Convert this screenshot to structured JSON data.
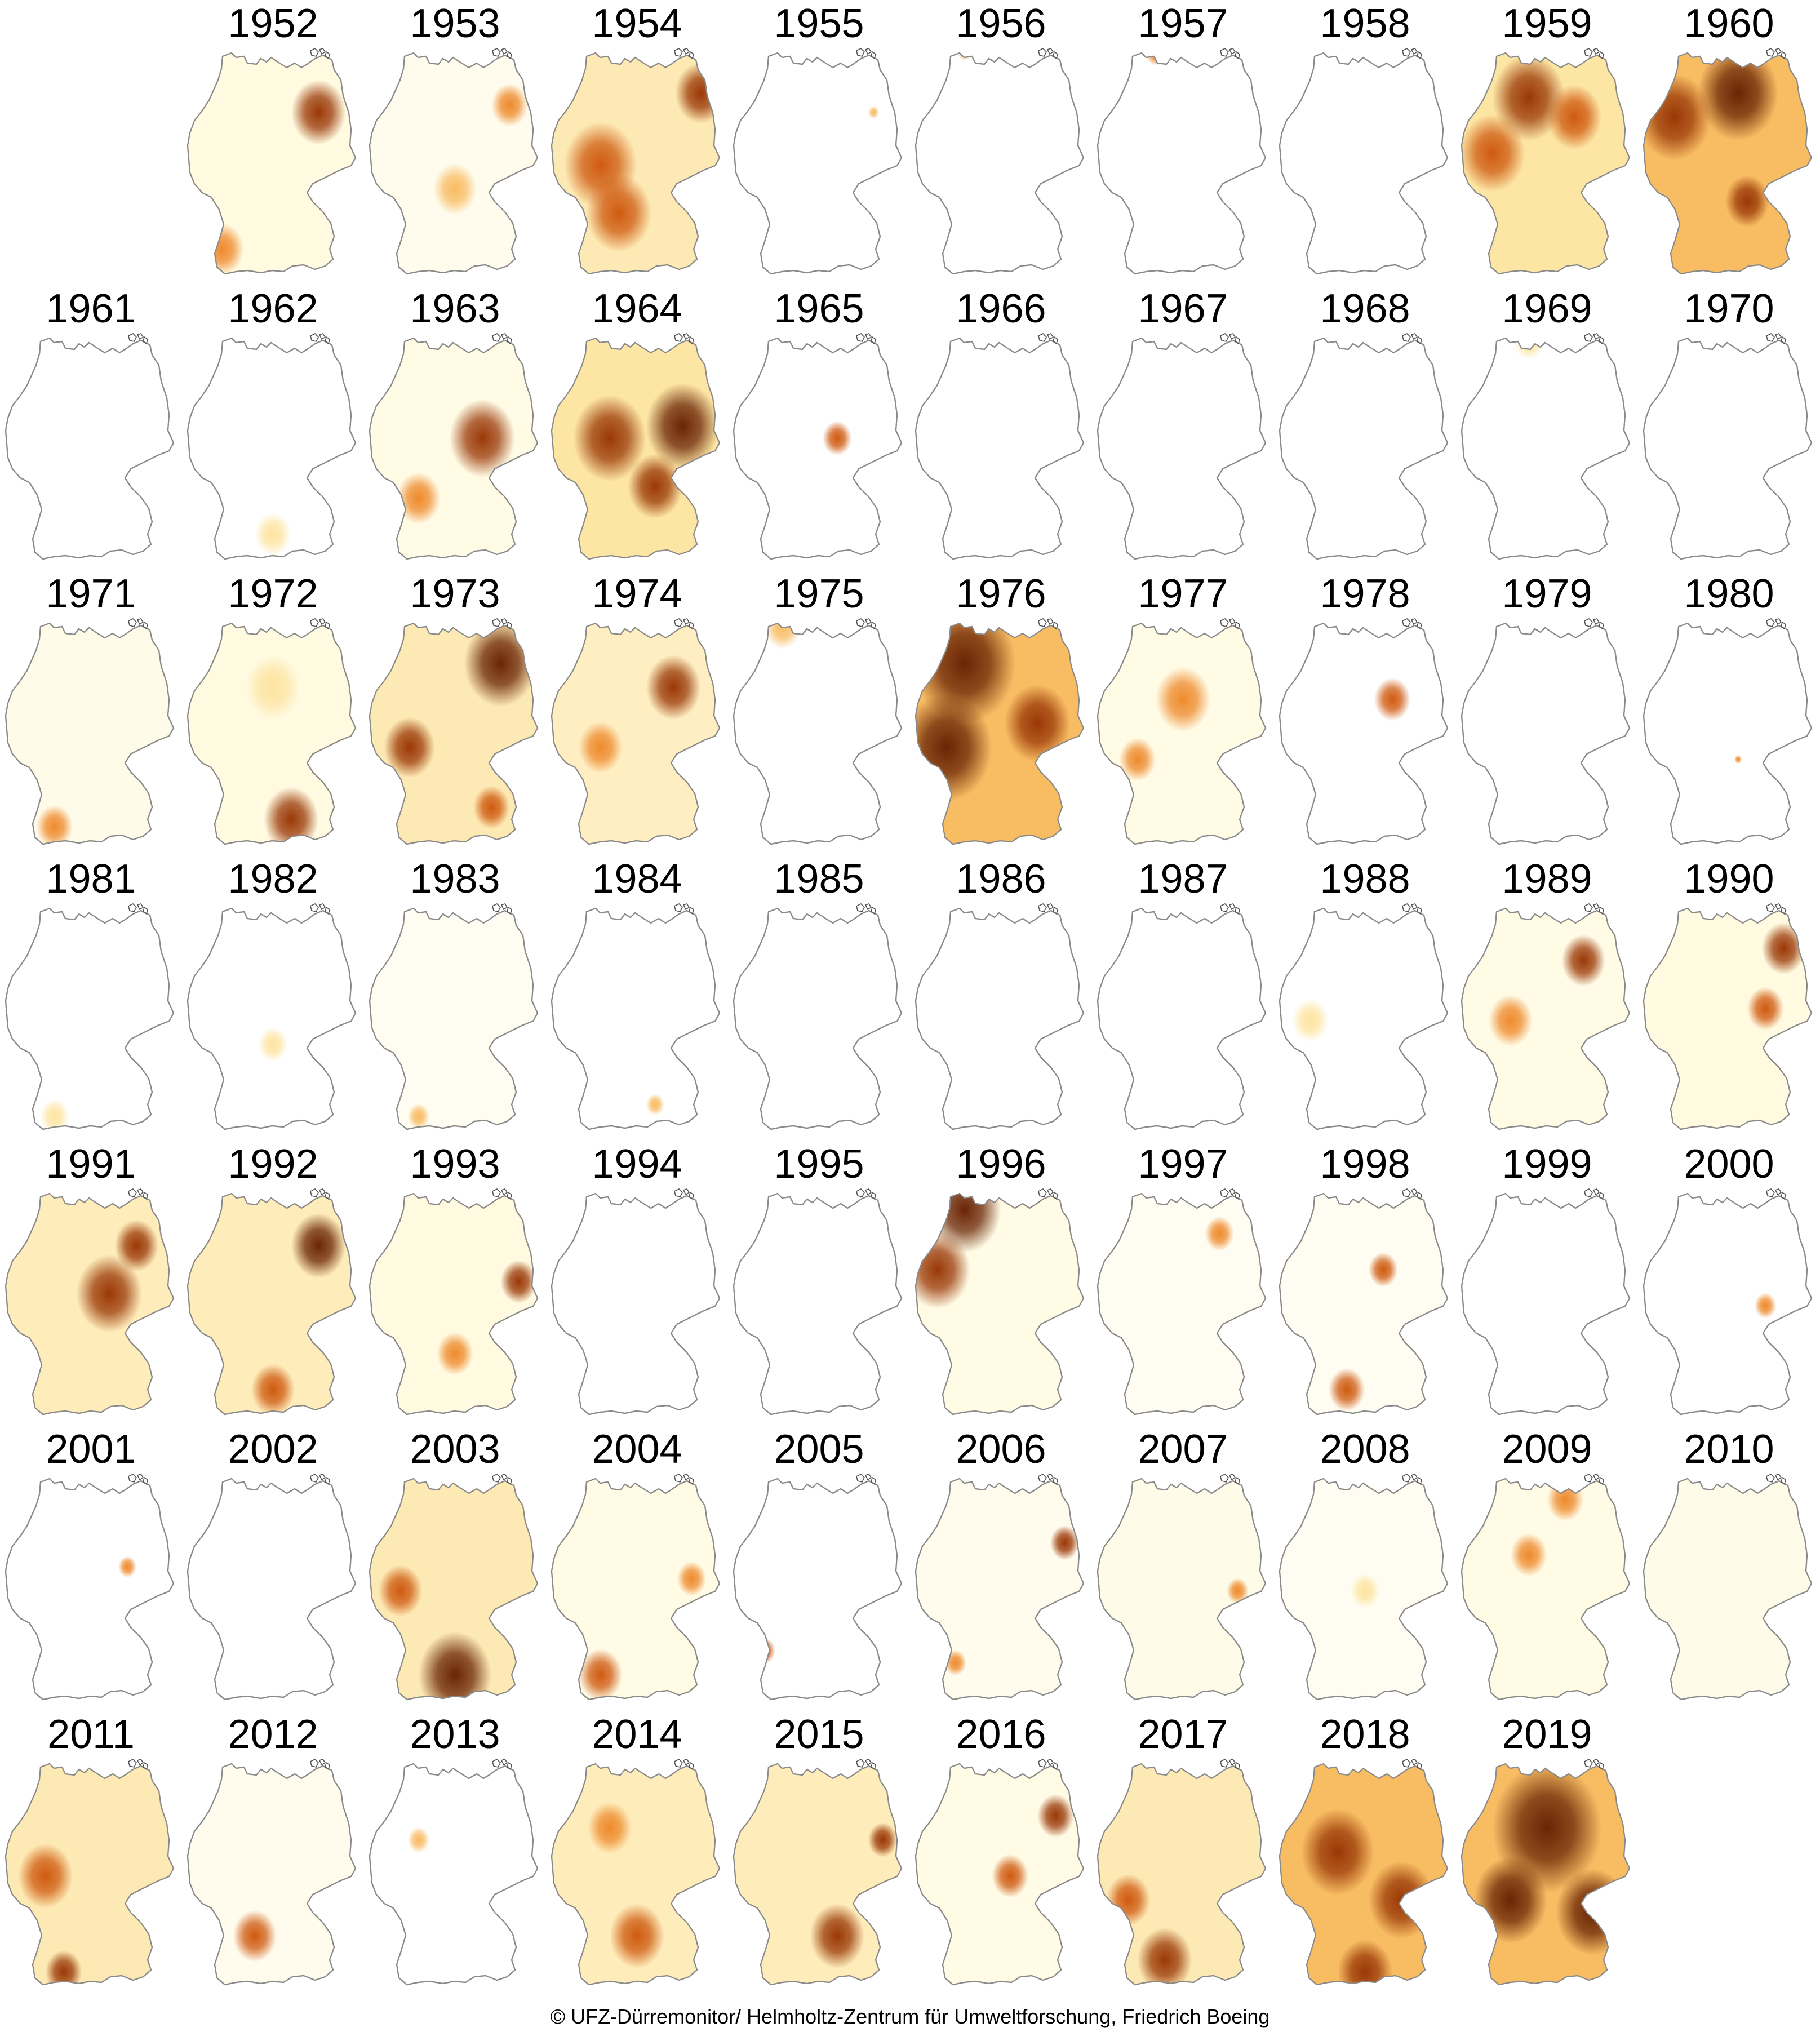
{
  "map": {
    "subject": "Germany",
    "colors": {
      "palette": [
        "#ffffff",
        "#fff6c8",
        "#fde4a0",
        "#f8bc63",
        "#ee8a2c",
        "#cf5a10",
        "#9a3806",
        "#6a2404"
      ],
      "outline": "#8a8a8a",
      "background": "#ffffff"
    },
    "years": [
      {
        "year": "1952",
        "level": 0.35,
        "hotspots": [
          [
            0.75,
            0.28,
            0.15,
            0.9
          ],
          [
            0.22,
            0.85,
            0.12,
            0.6
          ]
        ]
      },
      {
        "year": "1953",
        "level": 0.2,
        "hotspots": [
          [
            0.8,
            0.25,
            0.1,
            0.6
          ],
          [
            0.5,
            0.6,
            0.12,
            0.4
          ]
        ]
      },
      {
        "year": "1954",
        "level": 0.5,
        "hotspots": [
          [
            0.85,
            0.2,
            0.14,
            0.9
          ],
          [
            0.3,
            0.5,
            0.2,
            0.7
          ],
          [
            0.4,
            0.7,
            0.18,
            0.7
          ]
        ]
      },
      {
        "year": "1955",
        "level": 0.01,
        "hotspots": [
          [
            0.8,
            0.28,
            0.03,
            0.4
          ]
        ]
      },
      {
        "year": "1956",
        "level": 0.02,
        "hotspots": [
          [
            0.3,
            0.03,
            0.04,
            0.4
          ]
        ]
      },
      {
        "year": "1957",
        "level": 0.02,
        "hotspots": [
          [
            0.35,
            0.04,
            0.05,
            0.5
          ]
        ]
      },
      {
        "year": "1958",
        "level": 0.01,
        "hotspots": []
      },
      {
        "year": "1959",
        "level": 0.6,
        "hotspots": [
          [
            0.4,
            0.22,
            0.2,
            0.85
          ],
          [
            0.2,
            0.45,
            0.18,
            0.7
          ],
          [
            0.65,
            0.3,
            0.15,
            0.7
          ]
        ]
      },
      {
        "year": "1960",
        "level": 0.7,
        "hotspots": [
          [
            0.55,
            0.2,
            0.22,
            0.95
          ],
          [
            0.2,
            0.3,
            0.2,
            0.9
          ],
          [
            0.6,
            0.65,
            0.12,
            0.8
          ]
        ]
      },
      {
        "year": "1961",
        "level": 0.02,
        "hotspots": []
      },
      {
        "year": "1962",
        "level": 0.04,
        "hotspots": [
          [
            0.5,
            0.85,
            0.1,
            0.25
          ]
        ]
      },
      {
        "year": "1963",
        "level": 0.3,
        "hotspots": [
          [
            0.65,
            0.45,
            0.18,
            0.85
          ],
          [
            0.3,
            0.7,
            0.12,
            0.6
          ]
        ]
      },
      {
        "year": "1964",
        "level": 0.6,
        "hotspots": [
          [
            0.75,
            0.4,
            0.2,
            1.0
          ],
          [
            0.35,
            0.45,
            0.2,
            0.8
          ],
          [
            0.6,
            0.65,
            0.15,
            0.8
          ]
        ]
      },
      {
        "year": "1965",
        "level": 0.08,
        "hotspots": [
          [
            0.6,
            0.45,
            0.08,
            0.7
          ]
        ]
      },
      {
        "year": "1966",
        "level": 0.01,
        "hotspots": []
      },
      {
        "year": "1967",
        "level": 0.01,
        "hotspots": []
      },
      {
        "year": "1968",
        "level": 0.01,
        "hotspots": []
      },
      {
        "year": "1969",
        "level": 0.04,
        "hotspots": [
          [
            0.4,
            0.05,
            0.08,
            0.3
          ]
        ]
      },
      {
        "year": "1970",
        "level": 0.01,
        "hotspots": []
      },
      {
        "year": "1971",
        "level": 0.25,
        "hotspots": [
          [
            0.3,
            0.88,
            0.1,
            0.6
          ]
        ]
      },
      {
        "year": "1972",
        "level": 0.35,
        "hotspots": [
          [
            0.6,
            0.85,
            0.15,
            0.85
          ],
          [
            0.5,
            0.3,
            0.15,
            0.3
          ]
        ]
      },
      {
        "year": "1973",
        "level": 0.5,
        "hotspots": [
          [
            0.75,
            0.2,
            0.2,
            0.95
          ],
          [
            0.25,
            0.55,
            0.14,
            0.85
          ],
          [
            0.7,
            0.8,
            0.1,
            0.7
          ]
        ]
      },
      {
        "year": "1974",
        "level": 0.4,
        "hotspots": [
          [
            0.7,
            0.3,
            0.15,
            0.9
          ],
          [
            0.3,
            0.55,
            0.12,
            0.5
          ]
        ]
      },
      {
        "year": "1975",
        "level": 0.06,
        "hotspots": [
          [
            0.3,
            0.05,
            0.1,
            0.4
          ]
        ]
      },
      {
        "year": "1976",
        "level": 0.85,
        "hotspots": [
          [
            0.3,
            0.2,
            0.28,
            1.0
          ],
          [
            0.2,
            0.55,
            0.25,
            1.0
          ],
          [
            0.7,
            0.45,
            0.18,
            0.9
          ]
        ]
      },
      {
        "year": "1977",
        "level": 0.3,
        "hotspots": [
          [
            0.5,
            0.35,
            0.15,
            0.6
          ],
          [
            0.25,
            0.6,
            0.1,
            0.5
          ]
        ]
      },
      {
        "year": "1978",
        "level": 0.08,
        "hotspots": [
          [
            0.65,
            0.35,
            0.1,
            0.65
          ]
        ]
      },
      {
        "year": "1979",
        "level": 0.01,
        "hotspots": []
      },
      {
        "year": "1980",
        "level": 0.01,
        "hotspots": [
          [
            0.55,
            0.6,
            0.02,
            0.5
          ]
        ]
      },
      {
        "year": "1981",
        "level": 0.01,
        "hotspots": [
          [
            0.3,
            0.9,
            0.08,
            0.3
          ]
        ]
      },
      {
        "year": "1982",
        "level": 0.1,
        "hotspots": [
          [
            0.5,
            0.6,
            0.08,
            0.3
          ]
        ]
      },
      {
        "year": "1983",
        "level": 0.15,
        "hotspots": [
          [
            0.3,
            0.9,
            0.06,
            0.4
          ]
        ]
      },
      {
        "year": "1984",
        "level": 0.05,
        "hotspots": [
          [
            0.6,
            0.85,
            0.05,
            0.4
          ]
        ]
      },
      {
        "year": "1985",
        "level": 0.02,
        "hotspots": []
      },
      {
        "year": "1986",
        "level": 0.04,
        "hotspots": []
      },
      {
        "year": "1987",
        "level": 0.01,
        "hotspots": []
      },
      {
        "year": "1988",
        "level": 0.06,
        "hotspots": [
          [
            0.2,
            0.5,
            0.1,
            0.3
          ]
        ]
      },
      {
        "year": "1989",
        "level": 0.3,
        "hotspots": [
          [
            0.7,
            0.25,
            0.12,
            0.8
          ],
          [
            0.3,
            0.5,
            0.12,
            0.5
          ]
        ]
      },
      {
        "year": "1990",
        "level": 0.35,
        "hotspots": [
          [
            0.8,
            0.2,
            0.12,
            0.9
          ],
          [
            0.7,
            0.45,
            0.1,
            0.7
          ]
        ]
      },
      {
        "year": "1991",
        "level": 0.45,
        "hotspots": [
          [
            0.6,
            0.45,
            0.18,
            0.9
          ],
          [
            0.75,
            0.25,
            0.12,
            0.8
          ]
        ]
      },
      {
        "year": "1992",
        "level": 0.45,
        "hotspots": [
          [
            0.75,
            0.25,
            0.15,
            0.95
          ],
          [
            0.5,
            0.85,
            0.12,
            0.7
          ]
        ]
      },
      {
        "year": "1993",
        "level": 0.35,
        "hotspots": [
          [
            0.85,
            0.4,
            0.1,
            0.85
          ],
          [
            0.5,
            0.7,
            0.1,
            0.6
          ]
        ]
      },
      {
        "year": "1994",
        "level": 0.01,
        "hotspots": []
      },
      {
        "year": "1995",
        "level": 0.02,
        "hotspots": []
      },
      {
        "year": "1996",
        "level": 0.3,
        "hotspots": [
          [
            0.3,
            0.1,
            0.2,
            1.0
          ],
          [
            0.15,
            0.35,
            0.18,
            0.9
          ]
        ]
      },
      {
        "year": "1997",
        "level": 0.15,
        "hotspots": [
          [
            0.7,
            0.2,
            0.08,
            0.6
          ]
        ]
      },
      {
        "year": "1998",
        "level": 0.15,
        "hotspots": [
          [
            0.6,
            0.35,
            0.08,
            0.7
          ],
          [
            0.4,
            0.85,
            0.1,
            0.7
          ]
        ]
      },
      {
        "year": "1999",
        "level": 0.02,
        "hotspots": []
      },
      {
        "year": "2000",
        "level": 0.03,
        "hotspots": [
          [
            0.7,
            0.5,
            0.06,
            0.6
          ]
        ]
      },
      {
        "year": "2001",
        "level": 0.02,
        "hotspots": [
          [
            0.7,
            0.4,
            0.05,
            0.6
          ]
        ]
      },
      {
        "year": "2002",
        "level": 0.01,
        "hotspots": []
      },
      {
        "year": "2003",
        "level": 0.5,
        "hotspots": [
          [
            0.5,
            0.85,
            0.2,
            0.95
          ],
          [
            0.2,
            0.5,
            0.12,
            0.7
          ]
        ]
      },
      {
        "year": "2004",
        "level": 0.3,
        "hotspots": [
          [
            0.3,
            0.85,
            0.12,
            0.7
          ],
          [
            0.8,
            0.45,
            0.08,
            0.5
          ]
        ]
      },
      {
        "year": "2005",
        "level": 0.05,
        "hotspots": [
          [
            0.2,
            0.75,
            0.06,
            0.7
          ]
        ]
      },
      {
        "year": "2006",
        "level": 0.2,
        "hotspots": [
          [
            0.85,
            0.3,
            0.08,
            0.85
          ],
          [
            0.25,
            0.8,
            0.06,
            0.6
          ]
        ]
      },
      {
        "year": "2007",
        "level": 0.25,
        "hotspots": [
          [
            0.8,
            0.5,
            0.06,
            0.5
          ]
        ]
      },
      {
        "year": "2008",
        "level": 0.15,
        "hotspots": [
          [
            0.5,
            0.5,
            0.08,
            0.3
          ]
        ]
      },
      {
        "year": "2009",
        "level": 0.3,
        "hotspots": [
          [
            0.4,
            0.35,
            0.1,
            0.6
          ],
          [
            0.6,
            0.12,
            0.1,
            0.6
          ]
        ]
      },
      {
        "year": "2010",
        "level": 0.25,
        "hotspots": []
      },
      {
        "year": "2011",
        "level": 0.5,
        "hotspots": [
          [
            0.25,
            0.5,
            0.15,
            0.7
          ],
          [
            0.35,
            0.9,
            0.1,
            0.8
          ]
        ]
      },
      {
        "year": "2012",
        "level": 0.2,
        "hotspots": [
          [
            0.4,
            0.75,
            0.12,
            0.7
          ]
        ]
      },
      {
        "year": "2013",
        "level": 0.08,
        "hotspots": [
          [
            0.3,
            0.35,
            0.06,
            0.4
          ]
        ]
      },
      {
        "year": "2014",
        "level": 0.45,
        "hotspots": [
          [
            0.5,
            0.75,
            0.15,
            0.7
          ],
          [
            0.35,
            0.3,
            0.12,
            0.6
          ]
        ]
      },
      {
        "year": "2015",
        "level": 0.45,
        "hotspots": [
          [
            0.6,
            0.75,
            0.15,
            0.85
          ],
          [
            0.85,
            0.35,
            0.08,
            0.8
          ]
        ]
      },
      {
        "year": "2016",
        "level": 0.3,
        "hotspots": [
          [
            0.8,
            0.25,
            0.1,
            0.85
          ],
          [
            0.55,
            0.5,
            0.1,
            0.7
          ]
        ]
      },
      {
        "year": "2017",
        "level": 0.5,
        "hotspots": [
          [
            0.4,
            0.85,
            0.15,
            0.85
          ],
          [
            0.2,
            0.6,
            0.12,
            0.7
          ]
        ]
      },
      {
        "year": "2018",
        "level": 0.7,
        "hotspots": [
          [
            0.35,
            0.4,
            0.2,
            0.85
          ],
          [
            0.7,
            0.6,
            0.18,
            0.9
          ],
          [
            0.5,
            0.9,
            0.15,
            0.85
          ]
        ]
      },
      {
        "year": "2019",
        "level": 0.9,
        "hotspots": [
          [
            0.5,
            0.3,
            0.3,
            1.0
          ],
          [
            0.3,
            0.6,
            0.2,
            1.0
          ],
          [
            0.75,
            0.65,
            0.2,
            1.0
          ]
        ]
      }
    ]
  },
  "credit": "© UFZ-Dürremonitor/ Helmholtz-Zentrum für Umweltforschung, Friedrich Boeing"
}
